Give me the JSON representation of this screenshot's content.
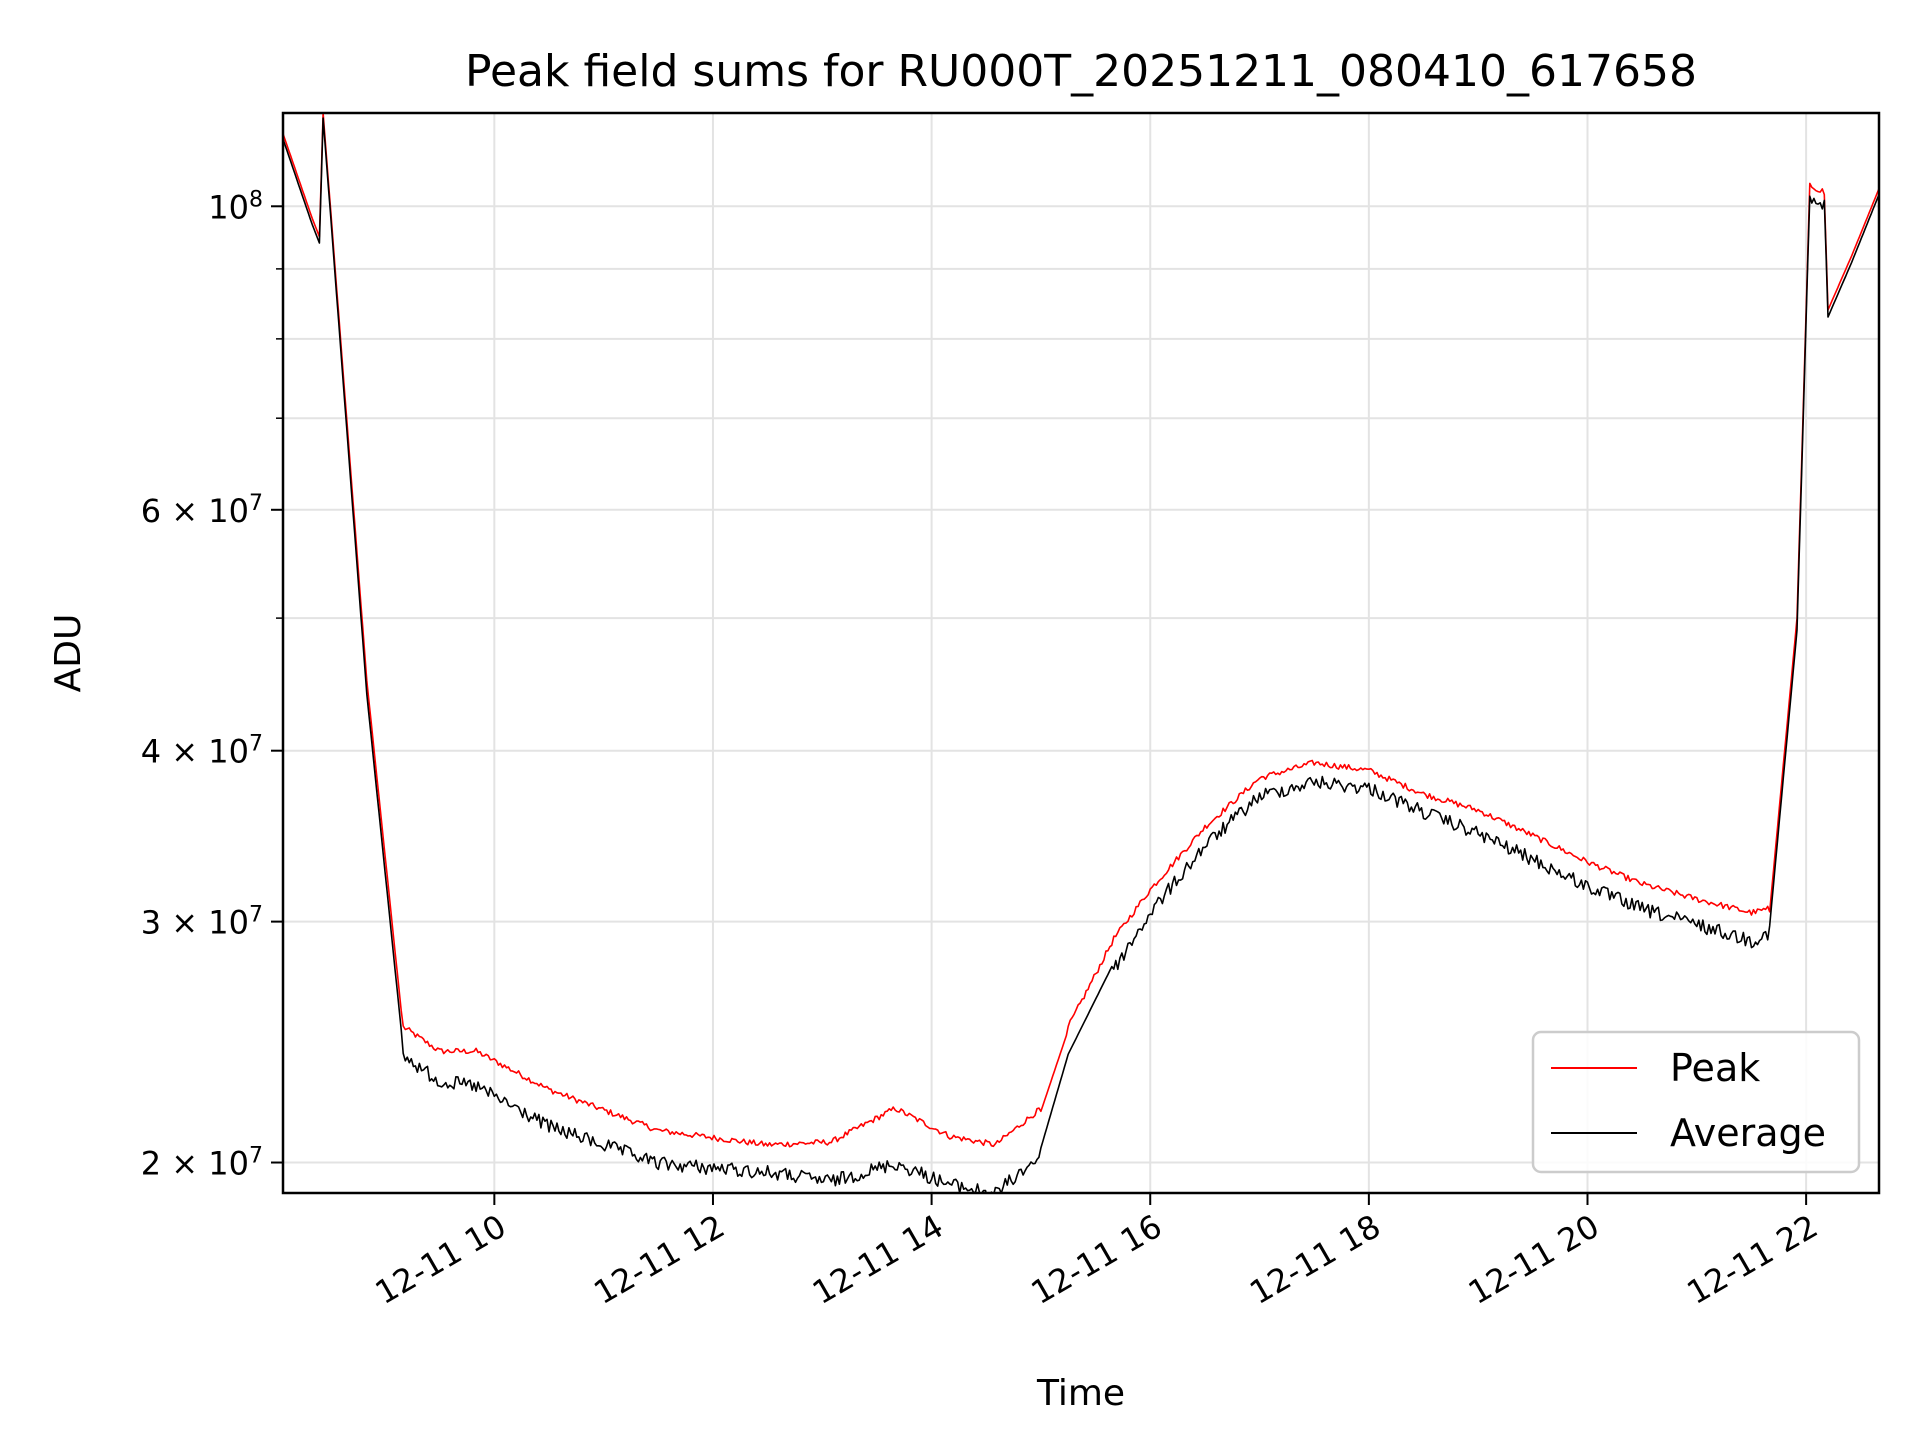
{
  "chart_data": {
    "type": "line",
    "title": "Peak field sums for RU000T_20251211_080410_617658",
    "xlabel": "Time",
    "ylabel": "ADU",
    "y_scale": "log",
    "ylim": [
      19000000,
      117000000
    ],
    "xlim": [
      "2025-12-11 08:04",
      "2025-12-11 22:40"
    ],
    "grid": true,
    "legend_position": "lower-right",
    "x_ticks": [
      {
        "value": "2025-12-11 10:00",
        "label": "12-11 10"
      },
      {
        "value": "2025-12-11 12:00",
        "label": "12-11 12"
      },
      {
        "value": "2025-12-11 14:00",
        "label": "12-11 14"
      },
      {
        "value": "2025-12-11 16:00",
        "label": "12-11 16"
      },
      {
        "value": "2025-12-11 18:00",
        "label": "12-11 18"
      },
      {
        "value": "2025-12-11 20:00",
        "label": "12-11 20"
      },
      {
        "value": "2025-12-11 22:00",
        "label": "12-11 22"
      }
    ],
    "y_ticks_major": [
      {
        "value": 20000000,
        "label_coef": "2",
        "label_exp": "7"
      },
      {
        "value": 30000000,
        "label_coef": "3",
        "label_exp": "7"
      },
      {
        "value": 40000000,
        "label_coef": "4",
        "label_exp": "7"
      },
      {
        "value": 60000000,
        "label_coef": "6",
        "label_exp": "7"
      },
      {
        "value": 100000000,
        "label_coef": "",
        "label_exp": "8"
      }
    ],
    "y_ticks_minor": [
      50000000,
      70000000,
      80000000,
      90000000
    ],
    "series": [
      {
        "name": "Peak",
        "color": "#ff0000",
        "x": [
          "2025-12-11 08:04",
          "2025-12-11 08:20",
          "2025-12-11 08:24",
          "2025-12-11 08:26",
          "2025-12-11 08:30",
          "2025-12-11 08:50",
          "2025-12-11 09:10",
          "2025-12-11 09:30",
          "2025-12-11 09:50",
          "2025-12-11 10:30",
          "2025-12-11 11:30",
          "2025-12-11 12:30",
          "2025-12-11 13:05",
          "2025-12-11 13:40",
          "2025-12-11 14:10",
          "2025-12-11 14:35",
          "2025-12-11 15:00",
          "2025-12-11 15:15",
          "2025-12-11 15:40",
          "2025-12-11 16:00",
          "2025-12-11 16:30",
          "2025-12-11 17:00",
          "2025-12-11 17:30",
          "2025-12-11 18:00",
          "2025-12-11 18:30",
          "2025-12-11 19:00",
          "2025-12-11 19:30",
          "2025-12-11 20:00",
          "2025-12-11 20:30",
          "2025-12-11 21:00",
          "2025-12-11 21:30",
          "2025-12-11 21:40",
          "2025-12-11 21:55",
          "2025-12-11 22:02",
          "2025-12-11 22:10",
          "2025-12-11 22:12",
          "2025-12-11 22:25",
          "2025-12-11 22:40"
        ],
        "values": [
          113000000,
          98000000,
          95000000,
          117000000,
          100000000,
          45000000,
          25000000,
          24000000,
          24000000,
          22500000,
          21000000,
          20500000,
          20600000,
          21800000,
          20800000,
          20500000,
          21800000,
          25000000,
          29000000,
          31500000,
          35000000,
          38000000,
          39000000,
          38500000,
          37000000,
          36000000,
          34500000,
          33000000,
          31800000,
          31000000,
          30300000,
          30500000,
          50000000,
          103000000,
          102000000,
          84000000,
          92000000,
          103000000
        ]
      },
      {
        "name": "Average",
        "color": "#000000",
        "x": [
          "2025-12-11 08:04",
          "2025-12-11 08:20",
          "2025-12-11 08:24",
          "2025-12-11 08:26",
          "2025-12-11 08:30",
          "2025-12-11 08:50",
          "2025-12-11 09:10",
          "2025-12-11 09:30",
          "2025-12-11 09:50",
          "2025-12-11 10:30",
          "2025-12-11 11:30",
          "2025-12-11 12:30",
          "2025-12-11 13:05",
          "2025-12-11 13:40",
          "2025-12-11 14:10",
          "2025-12-11 14:35",
          "2025-12-11 15:00",
          "2025-12-11 15:15",
          "2025-12-11 15:40",
          "2025-12-11 16:00",
          "2025-12-11 16:30",
          "2025-12-11 17:00",
          "2025-12-11 17:30",
          "2025-12-11 18:00",
          "2025-12-11 18:30",
          "2025-12-11 19:00",
          "2025-12-11 19:30",
          "2025-12-11 20:00",
          "2025-12-11 20:30",
          "2025-12-11 21:00",
          "2025-12-11 21:30",
          "2025-12-11 21:40",
          "2025-12-11 21:55",
          "2025-12-11 22:02",
          "2025-12-11 22:10",
          "2025-12-11 22:12",
          "2025-12-11 22:25",
          "2025-12-11 22:40"
        ],
        "values": [
          112000000,
          97000000,
          94000000,
          116000000,
          99000000,
          44000000,
          24200000,
          23200000,
          23000000,
          21500000,
          20200000,
          19900000,
          19600000,
          20200000,
          19500000,
          19200000,
          20500000,
          24000000,
          28000000,
          30800000,
          34500000,
          37500000,
          38400000,
          38000000,
          36500000,
          35200000,
          33700000,
          32200000,
          31000000,
          30200000,
          29400000,
          29800000,
          49000000,
          102000000,
          101000000,
          83000000,
          91000000,
          102000000
        ]
      }
    ]
  }
}
